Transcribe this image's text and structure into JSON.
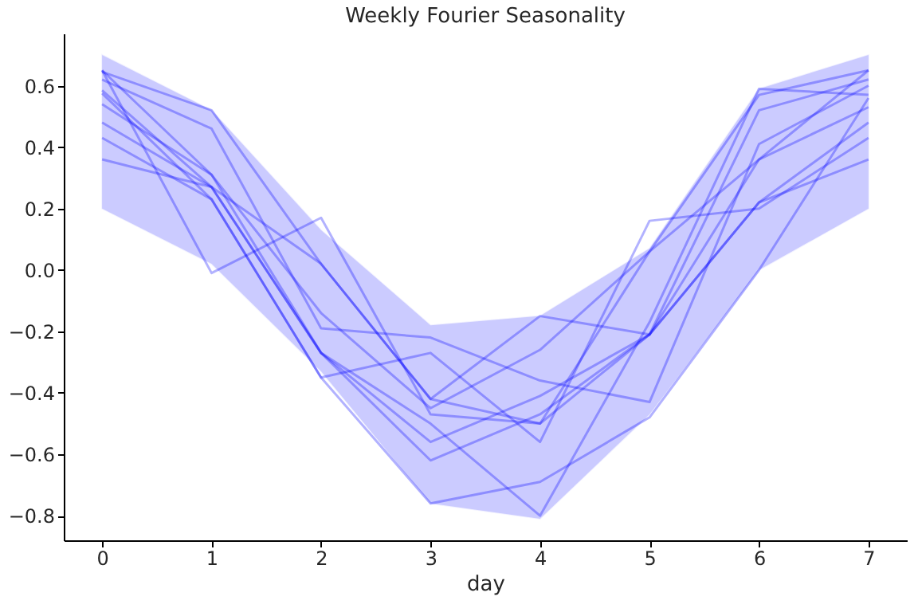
{
  "chart_data": {
    "type": "line",
    "title": "Weekly Fourier Seasonality",
    "xlabel": "day",
    "x": [
      0,
      1,
      2,
      3,
      4,
      5,
      6,
      7
    ],
    "series": [
      {
        "color": "#0000ff",
        "values": [
          0.65,
          0.31,
          -0.14,
          -0.45,
          -0.26,
          0.06,
          0.57,
          0.65
        ],
        "lower": [
          0.2,
          0.02,
          -0.33,
          -0.76,
          -0.81,
          -0.47,
          0.0,
          0.2
        ],
        "upper": [
          0.7,
          0.52,
          0.13,
          -0.18,
          -0.15,
          0.07,
          0.59,
          0.7
        ]
      },
      {
        "color": "#0000ff",
        "values": [
          0.645,
          0.52,
          0.02,
          -0.42,
          -0.5,
          -0.21,
          0.52,
          0.62
        ]
      },
      {
        "color": "#0000ff",
        "values": [
          0.62,
          0.46,
          -0.19,
          -0.22,
          -0.36,
          -0.43,
          0.41,
          0.6
        ]
      },
      {
        "color": "#0000ff",
        "values": [
          0.585,
          0.27,
          -0.27,
          -0.5,
          -0.8,
          -0.17,
          0.59,
          0.57
        ]
      },
      {
        "color": "#0000ff",
        "values": [
          0.575,
          0.23,
          -0.35,
          -0.76,
          -0.69,
          -0.48,
          0.0,
          0.56
        ]
      },
      {
        "color": "#0000ff",
        "values": [
          0.54,
          0.31,
          -0.27,
          -0.56,
          -0.41,
          -0.21,
          0.36,
          0.53
        ]
      },
      {
        "color": "#0000ff",
        "values": [
          0.48,
          0.27,
          -0.27,
          -0.62,
          -0.47,
          -0.21,
          0.22,
          0.48
        ]
      },
      {
        "color": "#0000ff",
        "values": [
          0.43,
          0.23,
          -0.35,
          -0.27,
          -0.56,
          0.16,
          0.2,
          0.43
        ]
      },
      {
        "color": "#0000ff",
        "values": [
          0.36,
          0.27,
          0.02,
          -0.42,
          -0.15,
          -0.21,
          0.22,
          0.36
        ]
      },
      {
        "color": "#0000ff",
        "values": [
          0.65,
          -0.01,
          0.17,
          -0.47,
          -0.5,
          0.06,
          0.36,
          0.65
        ]
      }
    ],
    "xlim": [
      -0.35,
      7.35
    ],
    "xticks": [
      0,
      1,
      2,
      3,
      4,
      5,
      6,
      7
    ],
    "ylim": [
      -0.88,
      0.77
    ],
    "yticks": [
      -0.8,
      -0.6,
      -0.4,
      -0.2,
      {
        "value": 0,
        "label": "0.0"
      },
      0.2,
      0.4,
      0.6
    ],
    "grid": false
  }
}
